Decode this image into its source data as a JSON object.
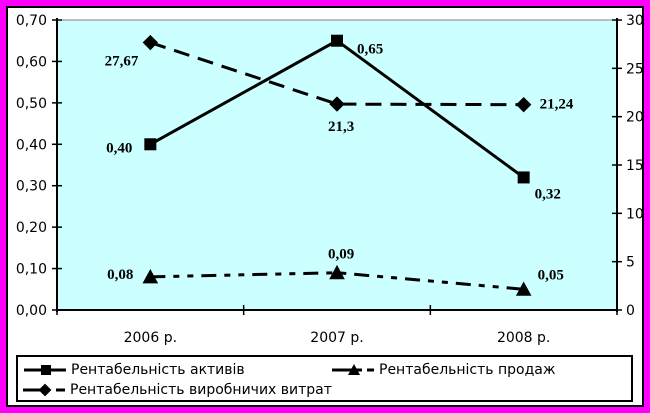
{
  "frame": {
    "outer_border_color": "#FF00FF",
    "inner_border_color": "#000000",
    "background": "#FFFFFF"
  },
  "chart_data": {
    "type": "line",
    "categories": [
      "2006 р.",
      "2007 р.",
      "2008 р."
    ],
    "left_axis": {
      "min": 0,
      "max": 0.7,
      "step": 0.1,
      "tick_labels": [
        "0,00",
        "0,10",
        "0,20",
        "0,30",
        "0,40",
        "0,50",
        "0,60",
        "0,70"
      ]
    },
    "right_axis": {
      "min": 0,
      "max": 30,
      "step": 5,
      "tick_labels": [
        "0",
        "5",
        "10",
        "15",
        "20",
        "25",
        "30"
      ]
    },
    "plot_background": "#CCFFFF",
    "grid": false,
    "legend_position": "bottom",
    "series": [
      {
        "name": "Рентабельність активів",
        "axis": "left",
        "marker": "square",
        "line": "solid",
        "values": [
          0.4,
          0.65,
          0.32
        ],
        "point_labels": [
          {
            "text": "0,40",
            "dx": -18,
            "dy": 8,
            "anchor": "end"
          },
          {
            "text": "0,65",
            "dx": 20,
            "dy": 13,
            "anchor": "start"
          },
          {
            "text": "0,32",
            "dx": 11,
            "dy": 21,
            "anchor": "start"
          }
        ]
      },
      {
        "name": "Рентабельність продаж",
        "axis": "left",
        "marker": "triangle",
        "line": "dash-dot-dot",
        "values": [
          0.08,
          0.09,
          0.05
        ],
        "point_labels": [
          {
            "text": "0,08",
            "dx": -17,
            "dy": 2,
            "anchor": "end"
          },
          {
            "text": "0,09",
            "dx": -9,
            "dy": -14,
            "anchor": "start"
          },
          {
            "text": "0,05",
            "dx": 14,
            "dy": -10,
            "anchor": "start"
          }
        ]
      },
      {
        "name": "Рентабельність виробничих витрат",
        "axis": "right",
        "marker": "diamond",
        "line": "dash",
        "values": [
          27.67,
          21.3,
          21.24
        ],
        "point_labels": [
          {
            "text": "27,67",
            "dx": -12,
            "dy": 23,
            "anchor": "end"
          },
          {
            "text": "21,3",
            "dx": -9,
            "dy": 27,
            "anchor": "start"
          },
          {
            "text": "21,24",
            "dx": 16,
            "dy": 4,
            "anchor": "start"
          }
        ]
      }
    ]
  }
}
